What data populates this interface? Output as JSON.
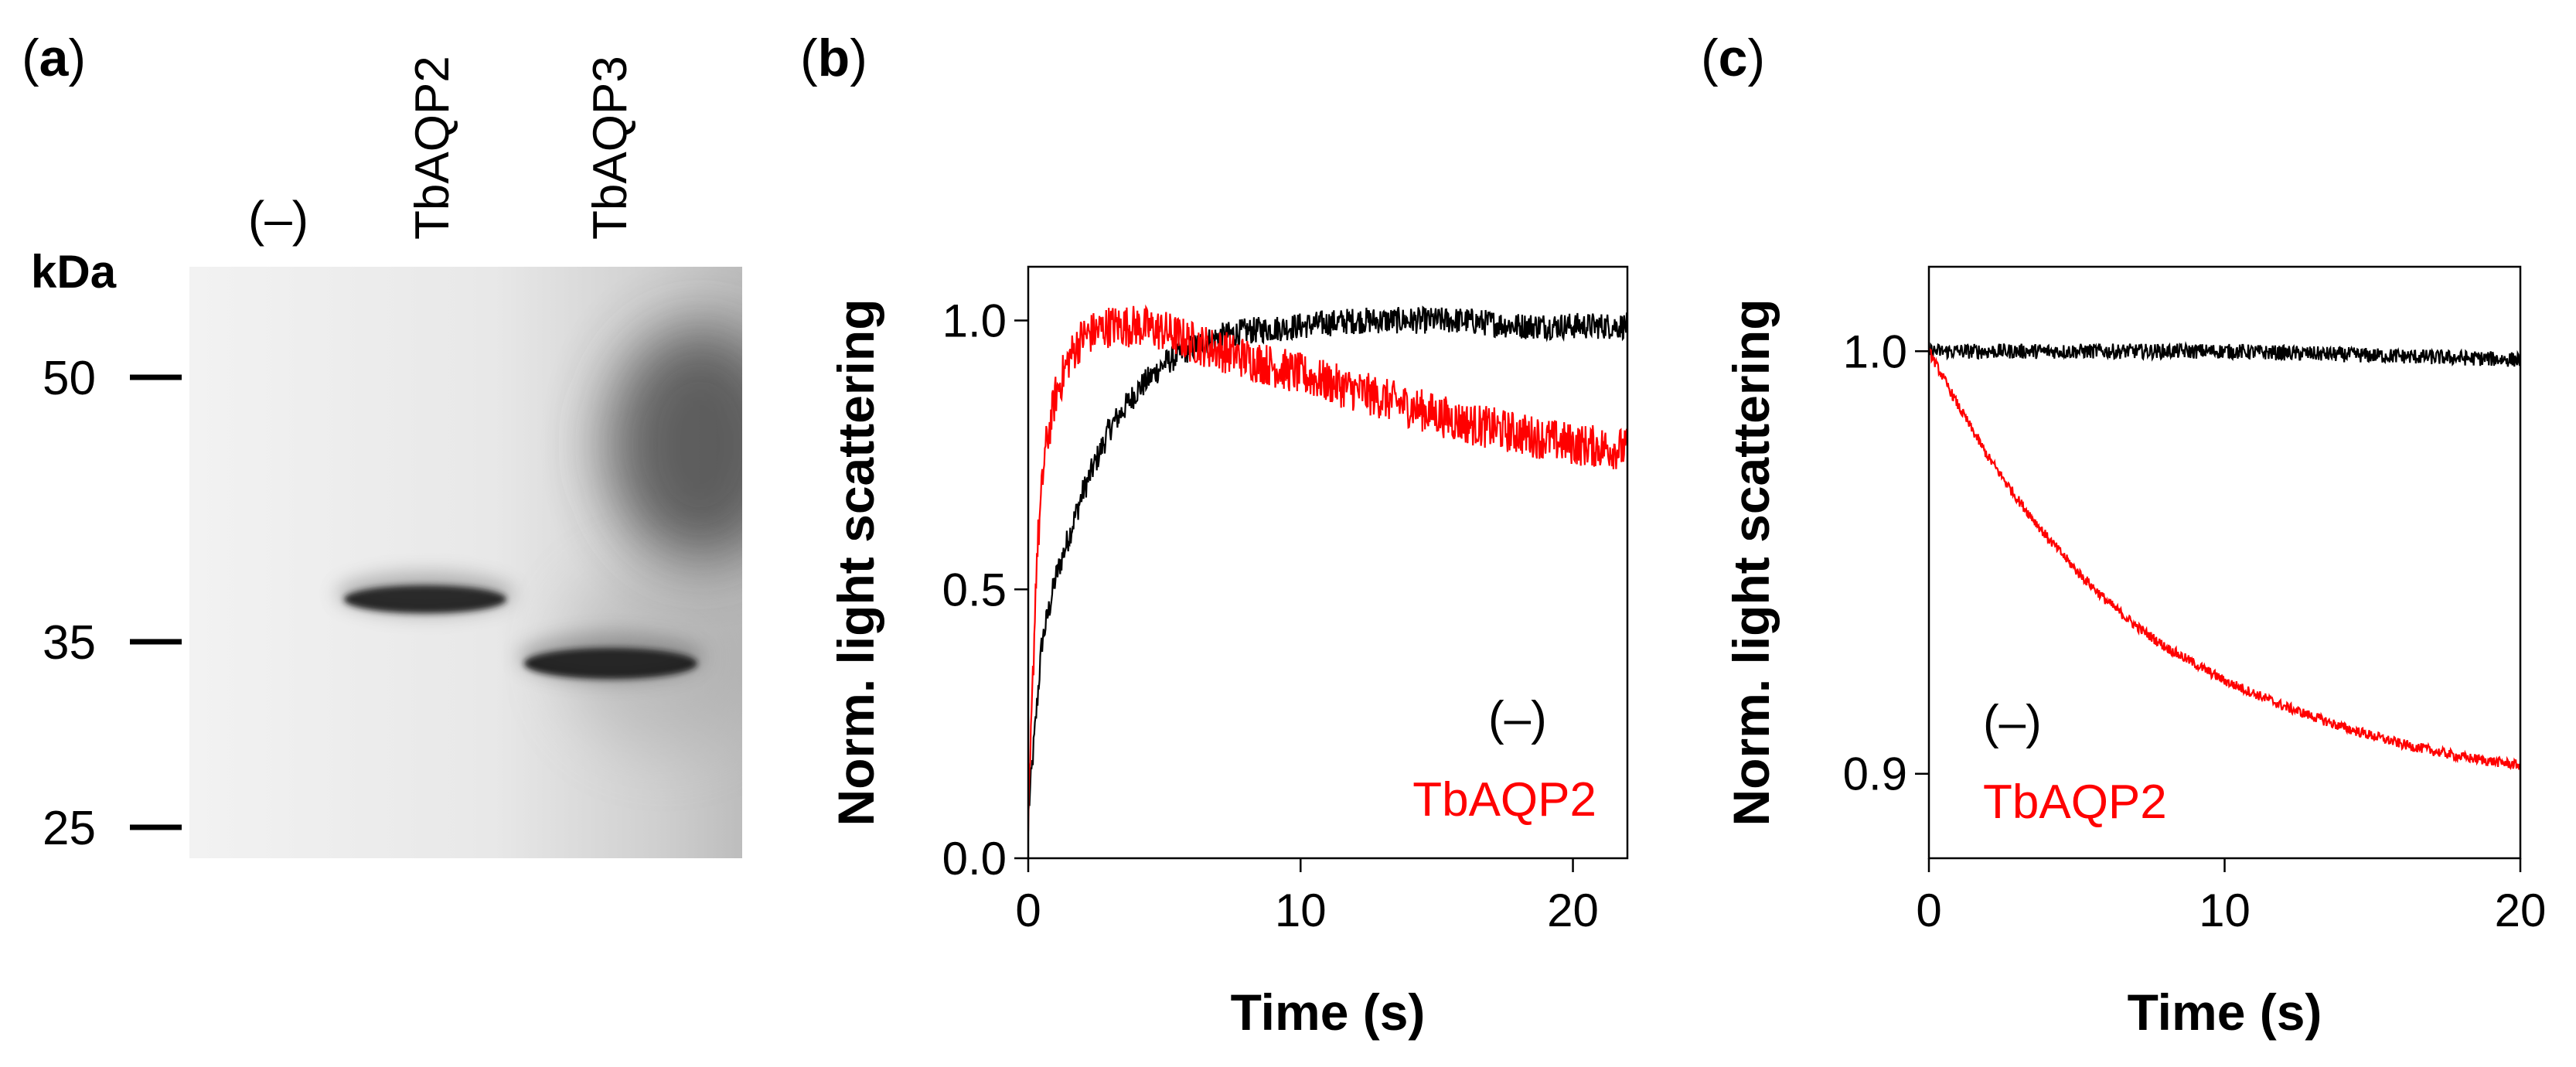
{
  "figure": {
    "panel_a": {
      "label_open": "(",
      "label_letter": "a",
      "label_close": ")",
      "lanes": [
        "(–)",
        "TbAQP2",
        "TbAQP3"
      ],
      "unit": "kDa",
      "markers": [
        "50",
        "35",
        "25"
      ],
      "marker_values": [
        50,
        35,
        25
      ]
    },
    "colors": {
      "control": "#000000",
      "tbaqp2": "#ff0000",
      "axis": "#000000"
    }
  },
  "chart_data": [
    {
      "id": "b",
      "panel_label_open": "(",
      "panel_label_letter": "b",
      "panel_label_close": ")",
      "type": "line",
      "xlabel": "Time (s)",
      "ylabel": "Norm. light scattering",
      "xlim": [
        0,
        22
      ],
      "ylim": [
        0,
        1.1
      ],
      "xticks": [
        0,
        10,
        20
      ],
      "xtick_labels": [
        "0",
        "10",
        "20"
      ],
      "yticks": [
        0,
        0.5,
        1.0
      ],
      "ytick_labels": [
        "0.0",
        "0.5",
        "1.0"
      ],
      "legend": [
        "(–)",
        "TbAQP2"
      ],
      "legend_placement": "bottom-right",
      "series": [
        {
          "name": "(–)",
          "color": "#000000",
          "x": [
            0,
            0.5,
            1,
            1.5,
            2,
            3,
            4,
            5,
            6,
            7,
            8,
            10,
            12,
            14,
            16,
            18,
            20,
            22
          ],
          "y": [
            0.08,
            0.4,
            0.52,
            0.6,
            0.68,
            0.8,
            0.87,
            0.92,
            0.95,
            0.97,
            0.98,
            0.99,
            1.0,
            1.0,
            1.0,
            0.99,
            0.99,
            0.99
          ],
          "noise": 0.025
        },
        {
          "name": "TbAQP2",
          "color": "#ff0000",
          "x": [
            0,
            0.3,
            0.6,
            1,
            1.5,
            2,
            3,
            4,
            5,
            6,
            8,
            10,
            12,
            14,
            16,
            18,
            20,
            22
          ],
          "y": [
            0.05,
            0.55,
            0.75,
            0.86,
            0.93,
            0.97,
            0.99,
            0.99,
            0.98,
            0.96,
            0.93,
            0.9,
            0.87,
            0.84,
            0.81,
            0.79,
            0.77,
            0.76
          ],
          "noise": 0.04
        }
      ]
    },
    {
      "id": "c",
      "panel_label_open": "(",
      "panel_label_letter": "c",
      "panel_label_close": ")",
      "type": "line",
      "xlabel": "Time (s)",
      "ylabel": "Norm. light scattering",
      "xlim": [
        0,
        20
      ],
      "ylim": [
        0.88,
        1.02
      ],
      "xticks": [
        0,
        10,
        20
      ],
      "xtick_labels": [
        "0",
        "10",
        "20"
      ],
      "yticks": [
        0.9,
        1.0
      ],
      "ytick_labels": [
        "0.9",
        "1.0"
      ],
      "legend": [
        "(–)",
        "TbAQP2"
      ],
      "legend_placement": "bottom-left",
      "series": [
        {
          "name": "(–)",
          "color": "#000000",
          "x": [
            0,
            5,
            10,
            15,
            20
          ],
          "y": [
            1.0,
            1.0,
            1.0,
            0.999,
            0.998
          ],
          "noise": 0.0018
        },
        {
          "name": "TbAQP2",
          "color": "#ff0000",
          "x": [
            0,
            1,
            2,
            3,
            4,
            5,
            6,
            7,
            8,
            9,
            10,
            12,
            14,
            16,
            18,
            20
          ],
          "y": [
            1.0,
            0.987,
            0.975,
            0.965,
            0.956,
            0.948,
            0.941,
            0.935,
            0.93,
            0.926,
            0.922,
            0.916,
            0.911,
            0.907,
            0.904,
            0.902
          ],
          "noise": 0.0012
        }
      ]
    }
  ]
}
